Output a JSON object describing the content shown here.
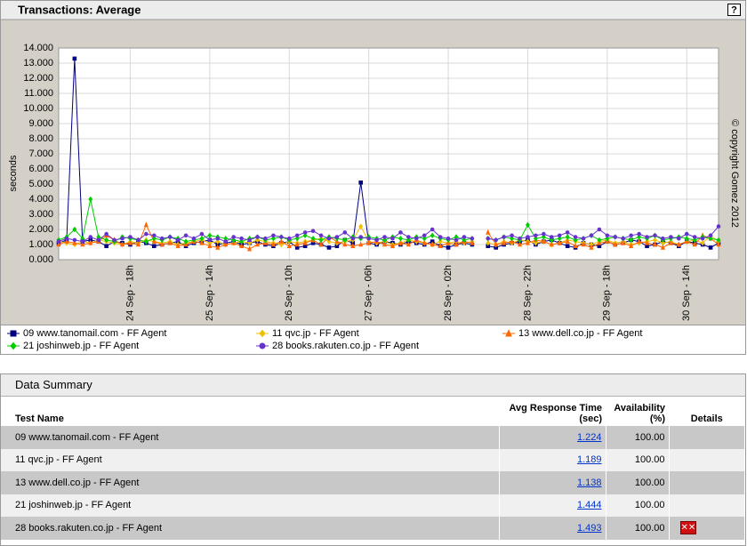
{
  "chart_data": {
    "type": "line",
    "title": "Transactions: Average",
    "help_label": "?",
    "y_label": "seconds",
    "annotation": "© copyright Gomez 2012",
    "x": [
      null,
      null,
      null,
      null,
      null,
      null,
      null,
      null,
      null,
      "24 Sep - 18h",
      null,
      null,
      null,
      null,
      null,
      null,
      null,
      null,
      null,
      "25 Sep - 14h",
      null,
      null,
      null,
      null,
      null,
      null,
      null,
      null,
      null,
      "26 Sep - 10h",
      null,
      null,
      null,
      null,
      null,
      null,
      null,
      null,
      null,
      "27 Sep - 06h",
      null,
      null,
      null,
      null,
      null,
      null,
      null,
      null,
      null,
      "28 Sep - 02h",
      null,
      null,
      null,
      null,
      null,
      null,
      null,
      null,
      null,
      "28 Sep - 22h",
      null,
      null,
      null,
      null,
      null,
      null,
      null,
      null,
      null,
      "29 Sep - 18h",
      null,
      null,
      null,
      null,
      null,
      null,
      null,
      null,
      null,
      "30 Sep - 14h",
      null,
      null,
      null,
      null
    ],
    "ylim": [
      0,
      14
    ],
    "yticks": [
      {
        "value": 0,
        "label": "0.000"
      },
      {
        "value": 1,
        "label": "1.000"
      },
      {
        "value": 2,
        "label": "2.000"
      },
      {
        "value": 3,
        "label": "3.000"
      },
      {
        "value": 4,
        "label": "4.000"
      },
      {
        "value": 5,
        "label": "5.000"
      },
      {
        "value": 6,
        "label": "6.000"
      },
      {
        "value": 7,
        "label": "7.000"
      },
      {
        "value": 8,
        "label": "8.000"
      },
      {
        "value": 9,
        "label": "9.000"
      },
      {
        "value": 10,
        "label": "10.000"
      },
      {
        "value": 11,
        "label": "11.000"
      },
      {
        "value": 12,
        "label": "12.000"
      },
      {
        "value": 13,
        "label": "13.000"
      },
      {
        "value": 14,
        "label": "14.000"
      }
    ],
    "grid": true,
    "series": [
      {
        "name": "09 www.tanomail.com - FF Agent",
        "color": "#000080",
        "marker": "square",
        "values": [
          1.1,
          1.3,
          13.3,
          1.2,
          1.3,
          1.2,
          0.9,
          1.2,
          1.1,
          1.0,
          1.2,
          1.1,
          0.9,
          1.0,
          1.1,
          1.2,
          0.9,
          1.1,
          1.2,
          1.3,
          1.0,
          1.1,
          1.2,
          1.0,
          1.1,
          1.2,
          1.0,
          0.9,
          1.1,
          1.2,
          0.8,
          0.9,
          1.1,
          1.0,
          0.8,
          0.9,
          1.3,
          1.1,
          5.1,
          1.1,
          1.0,
          1.2,
          1.1,
          1.0,
          1.2,
          1.1,
          1.0,
          1.2,
          0.9,
          0.8,
          1.0,
          1.1,
          1.0,
          null,
          0.9,
          0.8,
          1.0,
          1.1,
          1.2,
          1.3,
          1.0,
          1.2,
          1.3,
          1.1,
          0.9,
          0.8,
          1.1,
          1.0,
          0.9,
          1.2,
          1.0,
          1.1,
          1.3,
          1.2,
          0.9,
          1.0,
          1.2,
          1.1,
          0.9,
          1.2,
          1.1,
          1.0,
          0.8,
          1.1
        ]
      },
      {
        "name": "11 qvc.jp - FF Agent",
        "color": "#f0c000",
        "marker": "diamond",
        "values": [
          1.2,
          1.1,
          1.0,
          1.2,
          1.1,
          1.3,
          1.2,
          1.1,
          1.0,
          1.2,
          1.1,
          1.3,
          1.2,
          1.1,
          1.2,
          1.0,
          1.1,
          1.2,
          1.3,
          1.1,
          1.2,
          1.0,
          1.1,
          1.2,
          1.1,
          1.3,
          1.2,
          1.1,
          1.0,
          1.2,
          1.1,
          1.2,
          1.3,
          1.4,
          1.2,
          1.1,
          1.2,
          1.3,
          2.2,
          1.2,
          1.1,
          1.2,
          1.0,
          1.1,
          1.3,
          1.2,
          1.1,
          1.0,
          1.2,
          1.1,
          1.2,
          1.1,
          1.2,
          null,
          1.1,
          1.0,
          1.2,
          1.1,
          1.3,
          1.2,
          1.1,
          1.2,
          1.0,
          1.1,
          1.3,
          1.2,
          1.1,
          1.0,
          1.2,
          1.3,
          1.1,
          1.2,
          1.0,
          1.1,
          1.2,
          1.3,
          1.1,
          1.2,
          1.0,
          1.2,
          1.3,
          1.1,
          1.6,
          1.2
        ]
      },
      {
        "name": "13 www.dell.co.jp - FF Agent",
        "color": "#ff6600",
        "marker": "triangle",
        "values": [
          1.0,
          1.2,
          1.1,
          1.0,
          1.1,
          1.2,
          1.6,
          1.3,
          1.0,
          1.1,
          1.0,
          2.3,
          1.2,
          1.0,
          1.1,
          0.9,
          1.0,
          1.2,
          1.1,
          0.9,
          0.8,
          1.0,
          1.1,
          0.9,
          0.7,
          1.0,
          1.1,
          1.0,
          1.2,
          0.9,
          1.0,
          1.1,
          1.3,
          1.0,
          1.5,
          1.2,
          1.0,
          0.9,
          1.0,
          1.1,
          1.2,
          1.0,
          0.9,
          1.1,
          1.0,
          1.3,
          1.1,
          1.0,
          0.9,
          1.1,
          1.0,
          1.2,
          1.1,
          null,
          1.8,
          1.0,
          1.1,
          1.2,
          1.0,
          1.1,
          1.3,
          1.2,
          1.0,
          1.1,
          1.2,
          0.9,
          1.0,
          0.8,
          1.1,
          1.2,
          1.0,
          1.1,
          0.9,
          1.2,
          1.1,
          1.0,
          0.8,
          1.1,
          1.0,
          1.2,
          1.0,
          1.6,
          1.4,
          1.0
        ]
      },
      {
        "name": "21 joshinweb.jp - FF Agent",
        "color": "#00cc00",
        "marker": "diamond",
        "values": [
          1.3,
          1.5,
          2.0,
          1.4,
          4.0,
          1.5,
          1.3,
          1.2,
          1.5,
          1.4,
          1.3,
          1.2,
          1.4,
          1.3,
          1.5,
          1.4,
          1.2,
          1.3,
          1.4,
          1.6,
          1.5,
          1.4,
          1.3,
          1.2,
          1.4,
          1.5,
          1.3,
          1.4,
          1.5,
          1.3,
          1.4,
          1.6,
          1.4,
          1.3,
          1.5,
          1.4,
          1.3,
          1.5,
          1.4,
          1.5,
          1.4,
          1.3,
          1.5,
          1.4,
          1.3,
          1.5,
          1.4,
          1.6,
          1.4,
          1.3,
          1.5,
          1.3,
          1.4,
          null,
          1.4,
          1.3,
          1.5,
          1.4,
          1.3,
          2.3,
          1.4,
          1.5,
          1.3,
          1.4,
          1.5,
          1.3,
          1.4,
          1.6,
          1.3,
          1.4,
          1.5,
          1.4,
          1.3,
          1.5,
          1.4,
          1.6,
          1.3,
          1.4,
          1.5,
          1.4,
          1.3,
          1.5,
          1.4,
          1.3
        ]
      },
      {
        "name": "28 books.rakuten.co.jp - FF Agent",
        "color": "#6633cc",
        "marker": "circle",
        "values": [
          1.2,
          1.4,
          1.3,
          1.2,
          1.5,
          1.3,
          1.7,
          1.3,
          1.4,
          1.5,
          1.3,
          1.7,
          1.6,
          1.4,
          1.5,
          1.3,
          1.6,
          1.4,
          1.7,
          1.3,
          1.4,
          1.2,
          1.5,
          1.4,
          1.3,
          1.5,
          1.4,
          1.6,
          1.5,
          1.4,
          1.6,
          1.8,
          1.9,
          1.6,
          1.4,
          1.5,
          1.8,
          1.4,
          1.5,
          1.4,
          1.3,
          1.5,
          1.4,
          1.8,
          1.5,
          1.4,
          1.6,
          2.0,
          1.5,
          1.4,
          1.3,
          1.5,
          1.4,
          null,
          1.4,
          1.3,
          1.5,
          1.6,
          1.4,
          1.5,
          1.6,
          1.7,
          1.5,
          1.6,
          1.8,
          1.5,
          1.4,
          1.6,
          2.0,
          1.6,
          1.5,
          1.4,
          1.6,
          1.7,
          1.5,
          1.6,
          1.4,
          1.5,
          1.4,
          1.7,
          1.5,
          1.4,
          1.6,
          2.2
        ]
      }
    ]
  },
  "summary": {
    "title": "Data Summary",
    "columns": [
      "Test Name",
      "Avg Response Time (sec)",
      "Availability (%)",
      "Details"
    ],
    "rows": [
      [
        "09 www.tanomail.com - FF Agent",
        "1.224",
        "100.00"
      ],
      [
        "11 qvc.jp - FF Agent",
        "1.189",
        "100.00"
      ],
      [
        "13 www.dell.co.jp - FF Agent",
        "1.138",
        "100.00"
      ],
      [
        "21 joshinweb.jp - FF Agent",
        "1.444",
        "100.00"
      ],
      [
        "28 books.rakuten.co.jp - FF Agent",
        "1.493",
        "100.00"
      ]
    ]
  }
}
